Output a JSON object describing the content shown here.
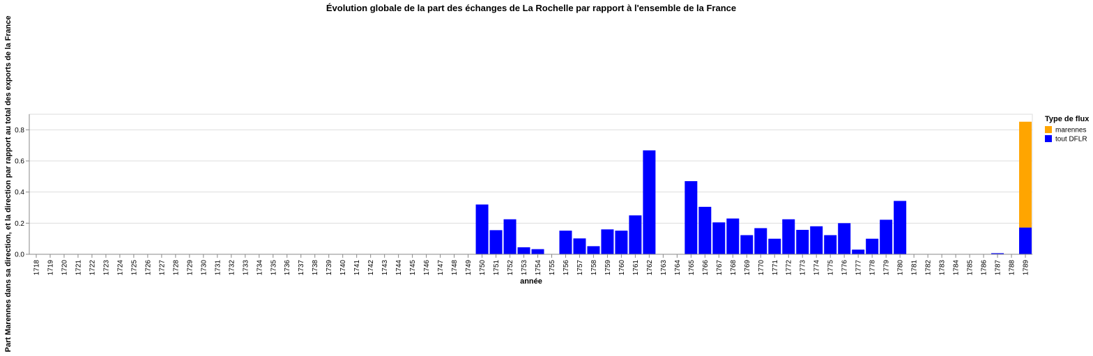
{
  "chart_data": {
    "type": "bar",
    "stacked": true,
    "title": "Évolution globale de la part des échanges de La Rochelle par rapport à l'ensemble de la France",
    "xlabel": "année",
    "ylabel": "Part Marennes dans sa direction, et la direction par rapport au total des exports de la France",
    "ylim": [
      0,
      0.9
    ],
    "yticks": [
      "0.0",
      "0.2",
      "0.4",
      "0.6",
      "0.8"
    ],
    "grid": true,
    "legend": {
      "title": "Type de flux",
      "placement": "right"
    },
    "categories": [
      "1718",
      "1719",
      "1720",
      "1721",
      "1722",
      "1723",
      "1724",
      "1725",
      "1726",
      "1727",
      "1728",
      "1729",
      "1730",
      "1731",
      "1732",
      "1733",
      "1734",
      "1735",
      "1736",
      "1737",
      "1738",
      "1739",
      "1740",
      "1741",
      "1742",
      "1743",
      "1744",
      "1745",
      "1746",
      "1747",
      "1748",
      "1749",
      "1750",
      "1751",
      "1752",
      "1753",
      "1754",
      "1755",
      "1756",
      "1757",
      "1758",
      "1759",
      "1760",
      "1761",
      "1762",
      "1763",
      "1764",
      "1765",
      "1766",
      "1767",
      "1768",
      "1769",
      "1770",
      "1771",
      "1772",
      "1773",
      "1774",
      "1775",
      "1776",
      "1777",
      "1778",
      "1779",
      "1780",
      "1781",
      "1782",
      "1783",
      "1784",
      "1785",
      "1786",
      "1787",
      "1788",
      "1789"
    ],
    "series": [
      {
        "name": "tout DFLR",
        "color": "#0000ff",
        "values": [
          0,
          0,
          0,
          0,
          0,
          0,
          0,
          0,
          0,
          0,
          0,
          0,
          0,
          0,
          0,
          0,
          0,
          0,
          0,
          0,
          0,
          0,
          0,
          0,
          0,
          0,
          0,
          0,
          0,
          0,
          0,
          0,
          0.32,
          0.155,
          0.225,
          0.045,
          0.033,
          0,
          0.152,
          0.102,
          0.052,
          0.16,
          0.152,
          0.25,
          0.668,
          0,
          0,
          0.47,
          0.305,
          0.205,
          0.23,
          0.123,
          0.168,
          0.1,
          0.225,
          0.157,
          0.18,
          0.123,
          0.2,
          0.03,
          0.1,
          0.222,
          0.343,
          0,
          0,
          0,
          0,
          0,
          0,
          0.007,
          0,
          0.172
        ]
      },
      {
        "name": "marennes",
        "color": "#ffa500",
        "values": [
          0,
          0,
          0,
          0,
          0,
          0,
          0,
          0,
          0,
          0,
          0,
          0,
          0,
          0,
          0,
          0,
          0,
          0,
          0,
          0,
          0,
          0,
          0,
          0,
          0,
          0,
          0,
          0,
          0,
          0,
          0,
          0,
          0,
          0,
          0,
          0,
          0,
          0,
          0,
          0,
          0,
          0,
          0,
          0,
          0,
          0,
          0,
          0,
          0,
          0,
          0,
          0,
          0,
          0,
          0,
          0,
          0,
          0,
          0,
          0,
          0,
          0,
          0,
          0,
          0,
          0,
          0,
          0,
          0,
          0,
          0,
          0.68
        ]
      }
    ],
    "legend_order": [
      "marennes",
      "tout DFLR"
    ]
  }
}
